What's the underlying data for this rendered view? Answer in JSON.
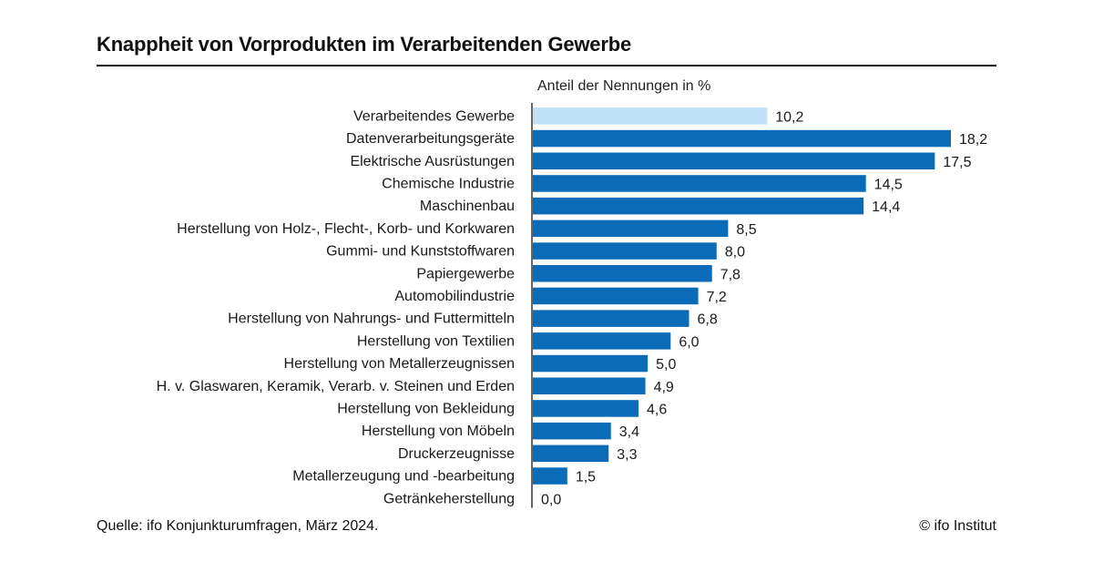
{
  "header": {
    "title": "Knappheit von Vorprodukten im Verarbeitenden Gewerbe",
    "unit_label": "Anteil der Nennungen in %"
  },
  "footer": {
    "source": "Quelle: ifo Konjunkturumfragen, März 2024.",
    "copyright": "© ifo Institut"
  },
  "colors": {
    "highlight": "#bfe0f6",
    "bar": "#0a6bb8",
    "axis": "#333333"
  },
  "chart_data": {
    "type": "bar",
    "orientation": "horizontal",
    "title": "Knappheit von Vorprodukten im Verarbeitenden Gewerbe",
    "xlabel": "Anteil der Nennungen in %",
    "xlim": [
      0,
      18.2
    ],
    "grid": false,
    "categories": [
      "Verarbeitendes Gewerbe",
      "Datenverarbeitungsgeräte",
      "Elektrische Ausrüstungen",
      "Chemische Industrie",
      "Maschinenbau",
      "Herstellung von Holz-, Flecht-, Korb- und Korkwaren",
      "Gummi- und Kunststoffwaren",
      "Papiergewerbe",
      "Automobilindustrie",
      "Herstellung von Nahrungs- und Futtermitteln",
      "Herstellung von Textilien",
      "Herstellung von Metallerzeugnissen",
      "H. v. Glaswaren, Keramik, Verarb. v. Steinen und Erden",
      "Herstellung von Bekleidung",
      "Herstellung von Möbeln",
      "Druckerzeugnisse",
      "Metallerzeugung und -bearbeitung",
      "Getränkeherstellung"
    ],
    "values": [
      10.2,
      18.2,
      17.5,
      14.5,
      14.4,
      8.5,
      8.0,
      7.8,
      7.2,
      6.8,
      6.0,
      5.0,
      4.9,
      4.6,
      3.4,
      3.3,
      1.5,
      0.0
    ],
    "value_labels": [
      "10,2",
      "18,2",
      "17,5",
      "14,5",
      "14,4",
      "8,5",
      "8,0",
      "7,8",
      "7,2",
      "6,8",
      "6,0",
      "5,0",
      "4,9",
      "4,6",
      "3,4",
      "3,3",
      "1,5",
      "0,0"
    ],
    "highlight_index": 0
  }
}
